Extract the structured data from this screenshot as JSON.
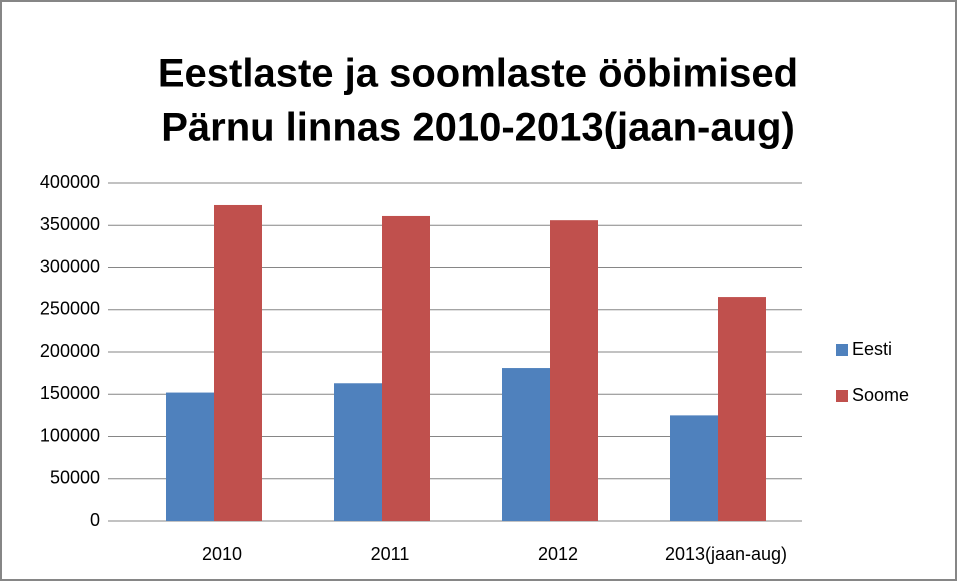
{
  "chart_data": {
    "type": "bar",
    "title": [
      "Eestlaste ja soomlaste ööbimised",
      "Pärnu linnas 2010-2013(jaan-aug)"
    ],
    "categories": [
      "2010",
      "2011",
      "2012",
      "2013(jaan-aug)"
    ],
    "series": [
      {
        "name": "Eesti",
        "color": "#4f81bd",
        "values": [
          152000,
          163000,
          181000,
          125000
        ]
      },
      {
        "name": "Soome",
        "color": "#c0504d",
        "values": [
          374000,
          361000,
          356000,
          265000
        ]
      }
    ],
    "ylim": [
      0,
      400000
    ],
    "yticks": [
      0,
      50000,
      100000,
      150000,
      200000,
      250000,
      300000,
      350000,
      400000
    ],
    "grid": true,
    "legend": "right"
  }
}
